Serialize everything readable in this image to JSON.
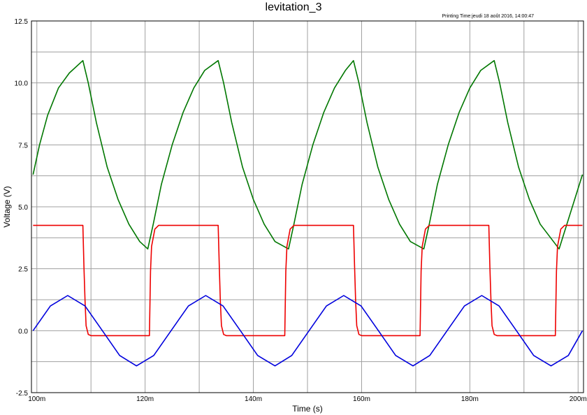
{
  "header": {
    "title": "levitation_3",
    "print_time": "Printing Time:jeudi 18 août 2016, 14:00:47"
  },
  "chart_data": {
    "type": "line",
    "title": "levitation_3",
    "xlabel": "Time (s)",
    "ylabel": "Voltage (V)",
    "xlim": [
      0.099,
      0.201
    ],
    "ylim": [
      -2.5,
      12.5
    ],
    "grid": true,
    "x_ticks": [
      {
        "value": 0.1,
        "label": "100m"
      },
      {
        "value": 0.12,
        "label": "120m"
      },
      {
        "value": 0.14,
        "label": "140m"
      },
      {
        "value": 0.16,
        "label": "160m"
      },
      {
        "value": 0.18,
        "label": "180m"
      },
      {
        "value": 0.2,
        "label": "200m"
      }
    ],
    "y_ticks": [
      {
        "value": -2.5,
        "label": "-2.5"
      },
      {
        "value": 0,
        "label": "0.0"
      },
      {
        "value": 2.5,
        "label": "2.5"
      },
      {
        "value": 5,
        "label": "5.0"
      },
      {
        "value": 7.5,
        "label": "7.5"
      },
      {
        "value": 10,
        "label": "10.0"
      },
      {
        "value": 12.5,
        "label": "12.5"
      }
    ],
    "series": [
      {
        "color": "#007700",
        "x": [
          0.0993,
          0.1005,
          0.102,
          0.104,
          0.106,
          0.1085,
          0.1095,
          0.111,
          0.113,
          0.115,
          0.117,
          0.119,
          0.1205,
          0.1215,
          0.123,
          0.125,
          0.127,
          0.129,
          0.131,
          0.1335,
          0.1345,
          0.136,
          0.138,
          0.14,
          0.142,
          0.144,
          0.1465,
          0.1475,
          0.149,
          0.151,
          0.153,
          0.155,
          0.157,
          0.1585,
          0.1595,
          0.161,
          0.163,
          0.165,
          0.167,
          0.169,
          0.1715,
          0.1725,
          0.174,
          0.176,
          0.178,
          0.18,
          0.182,
          0.1845,
          0.1855,
          0.187,
          0.189,
          0.191,
          0.193,
          0.1965,
          0.2008
        ],
        "y": [
          6.3,
          7.5,
          8.7,
          9.8,
          10.4,
          10.9,
          10.0,
          8.4,
          6.6,
          5.3,
          4.3,
          3.6,
          3.3,
          4.3,
          5.9,
          7.5,
          8.8,
          9.8,
          10.5,
          10.9,
          10.0,
          8.4,
          6.6,
          5.3,
          4.3,
          3.6,
          3.3,
          4.3,
          5.9,
          7.5,
          8.8,
          9.8,
          10.5,
          10.9,
          10.0,
          8.4,
          6.6,
          5.3,
          4.3,
          3.6,
          3.3,
          4.3,
          5.9,
          7.5,
          8.8,
          9.8,
          10.5,
          10.9,
          10.0,
          8.4,
          6.6,
          5.3,
          4.3,
          3.3,
          6.3
        ]
      },
      {
        "color": "#ee0000",
        "x": [
          0.0993,
          0.1085,
          0.1087,
          0.1089,
          0.1091,
          0.1095,
          0.11,
          0.1208,
          0.121,
          0.1212,
          0.1218,
          0.1225,
          0.1335,
          0.1337,
          0.1339,
          0.1341,
          0.1345,
          0.135,
          0.1458,
          0.146,
          0.1462,
          0.1468,
          0.1475,
          0.1585,
          0.1587,
          0.1589,
          0.1591,
          0.1595,
          0.16,
          0.1708,
          0.171,
          0.1712,
          0.1718,
          0.1725,
          0.1835,
          0.1837,
          0.1839,
          0.1841,
          0.1845,
          0.185,
          0.1958,
          0.196,
          0.1962,
          0.1968,
          0.1975,
          0.2008
        ],
        "y": [
          4.25,
          4.25,
          2.6,
          1.2,
          0.2,
          -0.15,
          -0.2,
          -0.2,
          2.4,
          3.4,
          4.1,
          4.25,
          4.25,
          2.6,
          1.2,
          0.2,
          -0.15,
          -0.2,
          -0.2,
          2.4,
          3.4,
          4.1,
          4.25,
          4.25,
          2.6,
          1.2,
          0.2,
          -0.15,
          -0.2,
          -0.2,
          2.4,
          3.4,
          4.1,
          4.25,
          4.25,
          2.6,
          1.2,
          0.2,
          -0.15,
          -0.2,
          -0.2,
          2.4,
          3.4,
          4.1,
          4.25,
          4.25
        ]
      },
      {
        "color": "#0000dd",
        "x": [
          0.0993,
          0.1025,
          0.1057,
          0.1089,
          0.1121,
          0.1153,
          0.1184,
          0.1216,
          0.1248,
          0.128,
          0.1312,
          0.1344,
          0.1376,
          0.1408,
          0.144,
          0.1471,
          0.1503,
          0.1535,
          0.1567,
          0.1599,
          0.1631,
          0.1663,
          0.1695,
          0.1726,
          0.1758,
          0.179,
          0.1822,
          0.1854,
          0.1886,
          0.1918,
          0.195,
          0.1982,
          0.2008
        ],
        "y": [
          0,
          1.0,
          1.42,
          1.0,
          0,
          -1.0,
          -1.42,
          -1.0,
          0,
          1.0,
          1.42,
          1.0,
          0,
          -1.0,
          -1.42,
          -1.0,
          0,
          1.0,
          1.42,
          1.0,
          0,
          -1.0,
          -1.42,
          -1.0,
          0,
          1.0,
          1.42,
          1.0,
          0,
          -1.0,
          -1.42,
          -1.0,
          0
        ]
      }
    ]
  }
}
